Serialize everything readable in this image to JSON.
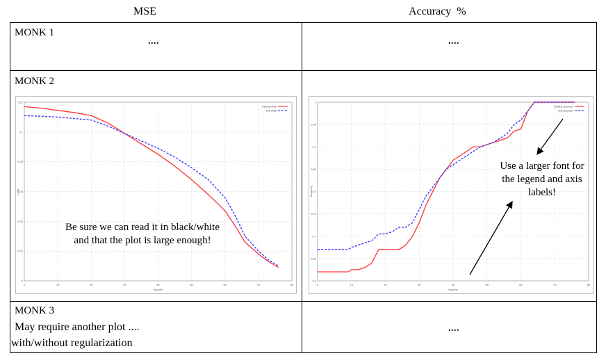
{
  "table": {
    "header": {
      "col1": "MSE",
      "col2": "Accuracy %"
    },
    "rows": [
      {
        "label": "MONK 1",
        "cell1": "....",
        "cell2": "...."
      },
      {
        "label": "MONK 2",
        "note_mse": [
          "Be sure we can read it in black/white",
          "and that the plot  is  large enough!"
        ],
        "note_acc": [
          "Use a larger font for",
          "the legend and axis",
          "labels!"
        ]
      },
      {
        "label": "MONK 3",
        "text_lines": [
          "May require another plot ....",
          "with/without  regularization"
        ],
        "cell2": "...."
      }
    ]
  },
  "chart_data": [
    {
      "type": "line",
      "title": "",
      "xlabel": "Epochs",
      "ylabel": "Loss",
      "xlim": [
        0,
        80
      ],
      "ylim": [
        0,
        0.12
      ],
      "xticks": [
        0,
        10,
        20,
        30,
        40,
        50,
        60,
        70,
        80
      ],
      "yticks": [
        0,
        0.02,
        0.04,
        0.06,
        0.08,
        0.1,
        0.12
      ],
      "ytick_labels": [
        "0",
        "0.02",
        "0.04",
        "0.06",
        "0.08",
        "0.1",
        "0.12"
      ],
      "grid": true,
      "legend_position": "top-right",
      "series": [
        {
          "name": "Training MSE",
          "color": "#ff4040",
          "dash": "solid",
          "x": [
            0,
            5,
            10,
            15,
            20,
            25,
            30,
            35,
            40,
            45,
            50,
            55,
            60,
            63,
            66,
            70,
            73,
            76
          ],
          "y": [
            0.117,
            0.116,
            0.1145,
            0.113,
            0.111,
            0.106,
            0.099,
            0.092,
            0.085,
            0.077,
            0.068,
            0.058,
            0.047,
            0.037,
            0.026,
            0.018,
            0.013,
            0.009
          ]
        },
        {
          "name": "Test MSE",
          "color": "#3a3aff",
          "dash": "dashed",
          "x": [
            0,
            5,
            10,
            15,
            20,
            25,
            30,
            35,
            40,
            45,
            50,
            55,
            60,
            63,
            66,
            70,
            73,
            76
          ],
          "y": [
            0.111,
            0.1105,
            0.11,
            0.109,
            0.108,
            0.104,
            0.099,
            0.094,
            0.089,
            0.083,
            0.076,
            0.068,
            0.056,
            0.044,
            0.03,
            0.02,
            0.014,
            0.01
          ]
        }
      ]
    },
    {
      "type": "line",
      "title": "",
      "xlabel": "Epochs",
      "ylabel": "Accuracy",
      "xlim": [
        0,
        80
      ],
      "ylim": [
        0.6,
        1.0
      ],
      "xticks": [
        0,
        10,
        20,
        30,
        40,
        50,
        60,
        70,
        80
      ],
      "yticks": [
        0.6,
        0.65,
        0.7,
        0.75,
        0.8,
        0.85,
        0.9,
        0.95,
        1.0
      ],
      "ytick_labels": [
        "0.6",
        "0.65",
        "0.7",
        "0.75",
        "0.8",
        "0.85",
        "0.9",
        "0.95",
        "1"
      ],
      "grid": true,
      "legend_position": "top-right",
      "series": [
        {
          "name": "Training Accuracy",
          "color": "#ff4040",
          "dash": "solid",
          "x": [
            0,
            5,
            9,
            10,
            12,
            14,
            16,
            18,
            20,
            24,
            26,
            27,
            28,
            30,
            32,
            34,
            36,
            38,
            40,
            42,
            44,
            46,
            48,
            50,
            52,
            54,
            56,
            58,
            60,
            61,
            62,
            64,
            70,
            76
          ],
          "y": [
            0.62,
            0.62,
            0.62,
            0.625,
            0.625,
            0.63,
            0.64,
            0.67,
            0.67,
            0.67,
            0.68,
            0.69,
            0.7,
            0.73,
            0.77,
            0.8,
            0.83,
            0.85,
            0.87,
            0.88,
            0.89,
            0.9,
            0.9,
            0.905,
            0.91,
            0.915,
            0.92,
            0.935,
            0.94,
            0.96,
            0.98,
            1.0,
            1.0,
            1.0
          ]
        },
        {
          "name": "Test Accuracy",
          "color": "#3a3aff",
          "dash": "dashed",
          "x": [
            0,
            5,
            9,
            10,
            12,
            14,
            16,
            18,
            20,
            22,
            24,
            26,
            28,
            30,
            32,
            34,
            36,
            38,
            40,
            42,
            44,
            46,
            48,
            50,
            52,
            54,
            56,
            58,
            60,
            62,
            63,
            64,
            70,
            76
          ],
          "y": [
            0.67,
            0.67,
            0.67,
            0.675,
            0.68,
            0.685,
            0.69,
            0.705,
            0.705,
            0.71,
            0.72,
            0.72,
            0.73,
            0.76,
            0.79,
            0.81,
            0.83,
            0.85,
            0.86,
            0.87,
            0.88,
            0.89,
            0.9,
            0.905,
            0.91,
            0.92,
            0.93,
            0.95,
            0.96,
            0.98,
            0.99,
            1.0,
            1.0,
            1.0
          ]
        }
      ]
    }
  ]
}
